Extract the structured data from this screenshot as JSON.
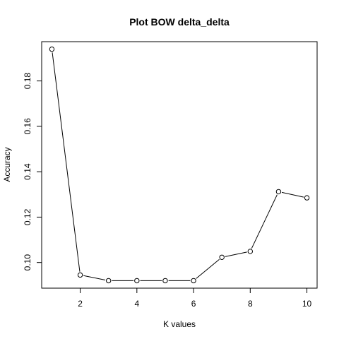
{
  "chart_data": {
    "type": "line",
    "title": "Plot BOW delta_delta",
    "xlabel": "K values",
    "ylabel": "Accuracy",
    "x": [
      1,
      2,
      3,
      4,
      5,
      6,
      7,
      8,
      9,
      10
    ],
    "series": [
      {
        "values": [
          0.194,
          0.0945,
          0.092,
          0.092,
          0.092,
          0.092,
          0.1023,
          0.1049,
          0.1312,
          0.1285
        ]
      }
    ],
    "xlim": [
      0.64,
      10.36
    ],
    "ylim": [
      0.0887,
      0.1973
    ],
    "xticks": [
      2,
      4,
      6,
      8,
      10
    ],
    "xtick_labels": [
      "2",
      "4",
      "6",
      "8",
      "10"
    ],
    "yticks": [
      0.1,
      0.12,
      0.14,
      0.16,
      0.18
    ],
    "ytick_labels": [
      "0.10",
      "0.12",
      "0.14",
      "0.16",
      "0.18"
    ],
    "grid": false,
    "marker": "open-circle",
    "line_color": "#000000"
  }
}
